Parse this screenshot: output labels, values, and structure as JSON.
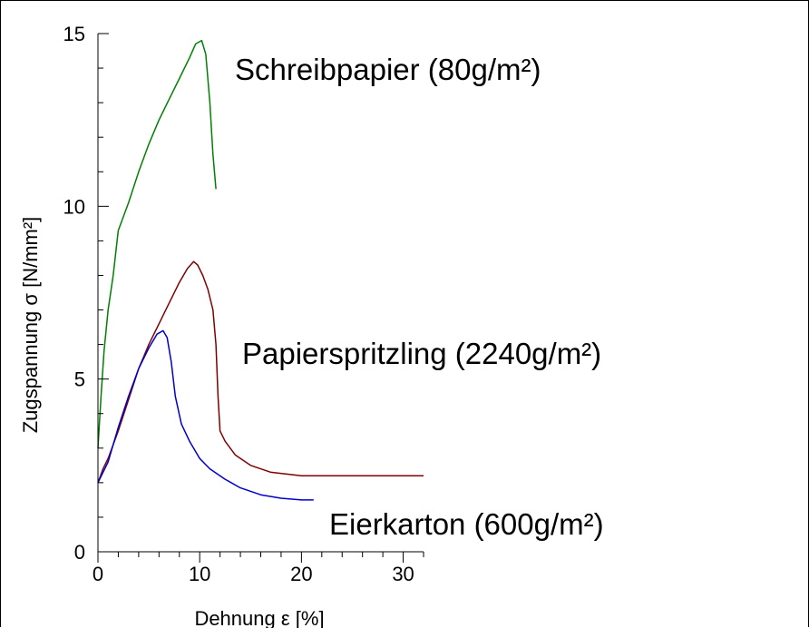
{
  "chart_data": {
    "type": "line",
    "xlabel": "Dehnung ε [%]",
    "ylabel": "Zugspannung σ [N/mm²]",
    "xlim": [
      0,
      32
    ],
    "ylim": [
      0,
      15
    ],
    "x_ticks": [
      0,
      10,
      20,
      30
    ],
    "y_ticks": [
      0,
      5,
      10,
      15
    ],
    "grid": false,
    "legend": "none",
    "series": [
      {
        "name": "Schreibpapier (80g/m²)",
        "color": "#008000",
        "points": [
          [
            0,
            3.0
          ],
          [
            0.3,
            4.5
          ],
          [
            0.6,
            5.8
          ],
          [
            1.0,
            7.0
          ],
          [
            1.5,
            8.0
          ],
          [
            2.0,
            9.3
          ],
          [
            3.0,
            10.1
          ],
          [
            4.0,
            11.0
          ],
          [
            5.0,
            11.8
          ],
          [
            6.0,
            12.5
          ],
          [
            7.0,
            13.1
          ],
          [
            8.0,
            13.7
          ],
          [
            9.0,
            14.3
          ],
          [
            9.6,
            14.7
          ],
          [
            10.2,
            14.8
          ],
          [
            10.6,
            14.4
          ],
          [
            11.0,
            13.0
          ],
          [
            11.3,
            11.5
          ],
          [
            11.6,
            10.5
          ]
        ]
      },
      {
        "name": "Papierspritzling (2240g/m²)",
        "color": "#800000",
        "points": [
          [
            0,
            2.0
          ],
          [
            0.5,
            2.4
          ],
          [
            1.0,
            2.7
          ],
          [
            2.0,
            3.5
          ],
          [
            3.0,
            4.4
          ],
          [
            4.0,
            5.3
          ],
          [
            5.0,
            6.0
          ],
          [
            6.0,
            6.6
          ],
          [
            7.0,
            7.2
          ],
          [
            8.0,
            7.8
          ],
          [
            8.8,
            8.2
          ],
          [
            9.4,
            8.4
          ],
          [
            9.8,
            8.3
          ],
          [
            10.3,
            8.0
          ],
          [
            10.8,
            7.6
          ],
          [
            11.3,
            7.0
          ],
          [
            11.6,
            6.0
          ],
          [
            11.8,
            4.5
          ],
          [
            12.0,
            3.5
          ],
          [
            12.5,
            3.2
          ],
          [
            13.5,
            2.8
          ],
          [
            15.0,
            2.5
          ],
          [
            17.0,
            2.3
          ],
          [
            20.0,
            2.2
          ],
          [
            25.0,
            2.2
          ],
          [
            32.0,
            2.2
          ]
        ]
      },
      {
        "name": "Eierkarton (600g/m²)",
        "color": "#0000cc",
        "points": [
          [
            0,
            2.0
          ],
          [
            0.5,
            2.3
          ],
          [
            1.0,
            2.6
          ],
          [
            2.0,
            3.6
          ],
          [
            3.0,
            4.5
          ],
          [
            4.0,
            5.3
          ],
          [
            5.0,
            5.9
          ],
          [
            5.8,
            6.3
          ],
          [
            6.4,
            6.4
          ],
          [
            6.8,
            6.2
          ],
          [
            7.2,
            5.5
          ],
          [
            7.6,
            4.5
          ],
          [
            8.2,
            3.7
          ],
          [
            9.0,
            3.2
          ],
          [
            10.0,
            2.7
          ],
          [
            11.0,
            2.4
          ],
          [
            12.5,
            2.1
          ],
          [
            14.0,
            1.85
          ],
          [
            16.0,
            1.65
          ],
          [
            18.0,
            1.55
          ],
          [
            20.0,
            1.5
          ],
          [
            21.2,
            1.5
          ]
        ]
      }
    ]
  }
}
